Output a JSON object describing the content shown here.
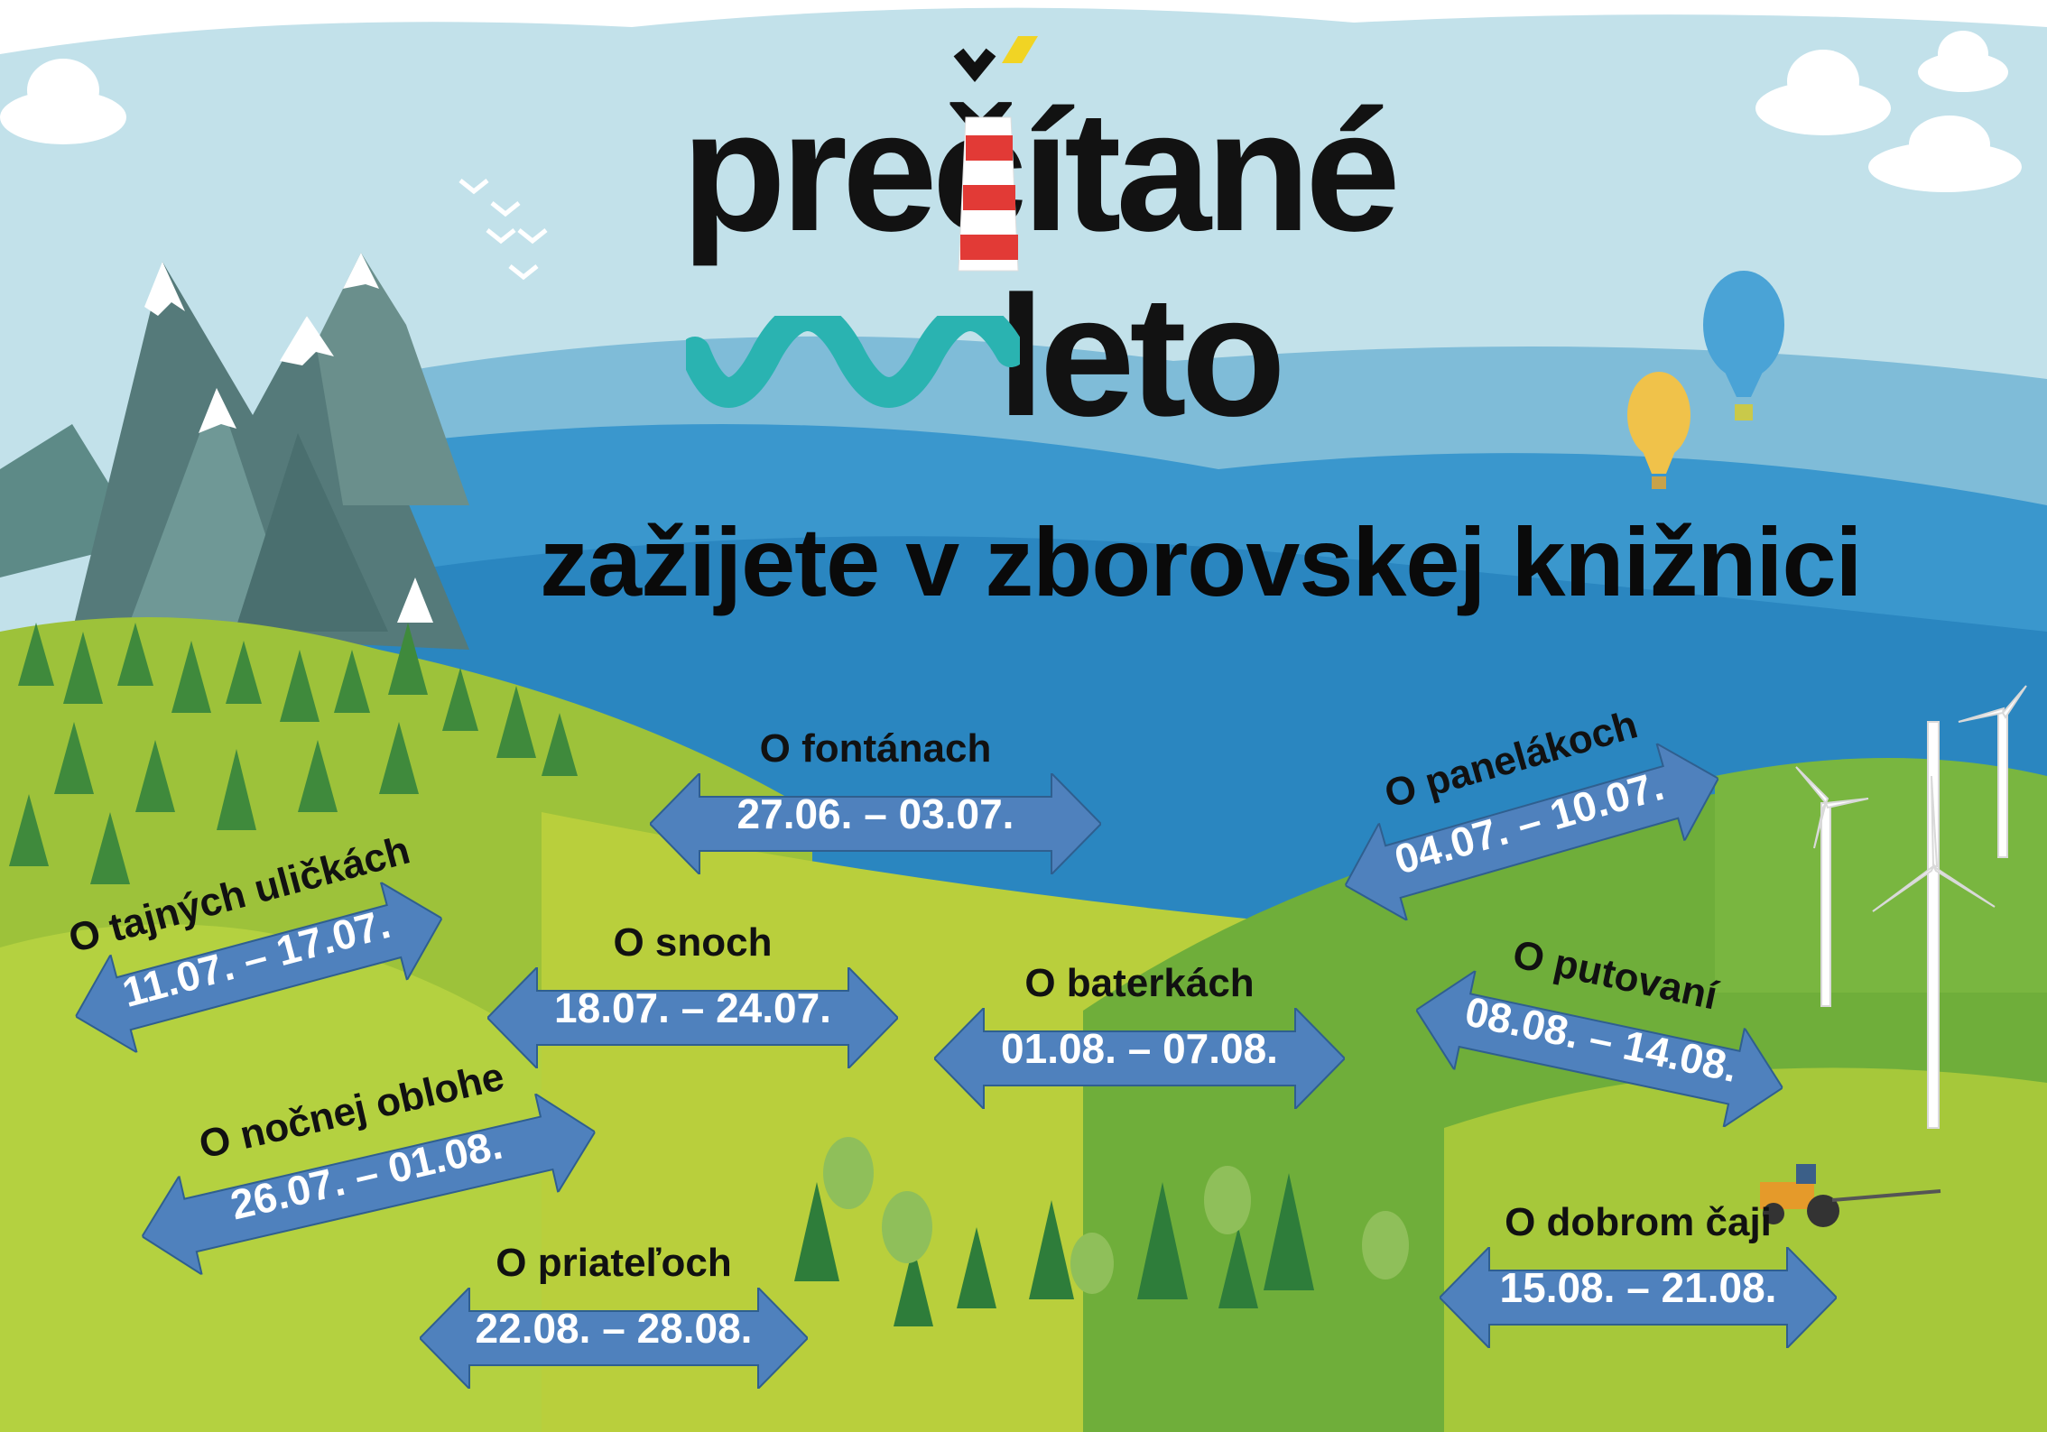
{
  "logo": {
    "line1": "prečítané",
    "line2": "leto"
  },
  "subtitle": "zažijete v zborovskej knižnici",
  "topics": [
    {
      "name": "O fontánach",
      "dates": "27.06. – 03.07."
    },
    {
      "name": "O panelákoch",
      "dates": "04.07. – 10.07."
    },
    {
      "name": "O tajných uličkách",
      "dates": "11.07. – 17.07."
    },
    {
      "name": "O snoch",
      "dates": "18.07. – 24.07."
    },
    {
      "name": "O baterkách",
      "dates": "01.08. – 07.08."
    },
    {
      "name": "O putovaní",
      "dates": "08.08. – 14.08."
    },
    {
      "name": "O nočnej oblohe",
      "dates": "26.07. – 01.08."
    },
    {
      "name": "O priateľoch",
      "dates": "22.08. – 28.08."
    },
    {
      "name": "O dobrom čaji",
      "dates": "15.08. – 21.08."
    }
  ],
  "colors": {
    "sky": "#bfe0ea",
    "sea": "#2f8ec6",
    "meadow": "#a9c93a",
    "hill": "#6aaa3a",
    "arrow": "#4f81bd",
    "logo_wave": "#2ab3b1"
  }
}
